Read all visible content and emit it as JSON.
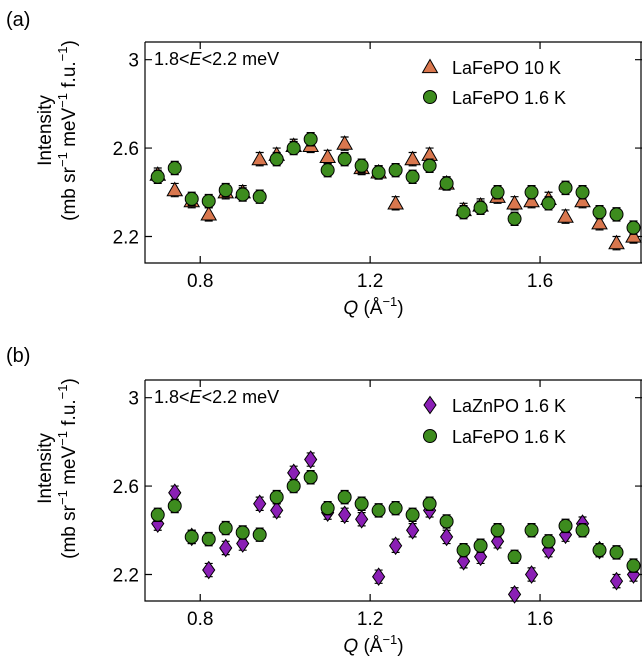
{
  "colors": {
    "triangle": "#d9774e",
    "circle": "#3d8c1e",
    "diamond": "#8a1fb5",
    "marker_edge": "#000000",
    "axis": "#000000"
  },
  "chart_data": [
    {
      "type": "scatter",
      "panel_label": "(a)",
      "annotation": {
        "pre": "1.8<",
        "var": "E",
        "post": "<2.2 meV"
      },
      "xlabel": {
        "var": "Q",
        "unit_pre": " (Å",
        "unit_sup": "−1",
        "unit_post": ")"
      },
      "ylabel": {
        "line1": "Intensity",
        "line2": "(mb sr−1 meV−1 f.u.−1)"
      },
      "ylabel_parts": {
        "line1": "Intensity",
        "l2a": "(mb sr",
        "l2b": "−1",
        "l2c": " meV",
        "l2d": "−1",
        "l2e": " f.u.",
        "l2f": "−1",
        "l2g": ")"
      },
      "xlim": [
        0.67,
        1.84
      ],
      "ylim": [
        2.08,
        3.08
      ],
      "xticks": [
        0.8,
        1.2,
        1.6
      ],
      "xtick_labels": [
        "0.8",
        "1.2",
        "1.6"
      ],
      "yticks": [
        2.2,
        2.6,
        3.0
      ],
      "ytick_labels": [
        "2.2",
        "2.6",
        "3"
      ],
      "legend_position": "top-right",
      "series": [
        {
          "name": "LaFePO 10 K",
          "marker": "triangle",
          "x": [
            0.7,
            0.74,
            0.78,
            0.82,
            0.86,
            0.9,
            0.94,
            0.98,
            1.02,
            1.06,
            1.1,
            1.14,
            1.18,
            1.22,
            1.26,
            1.3,
            1.34,
            1.38,
            1.42,
            1.46,
            1.5,
            1.54,
            1.58,
            1.62,
            1.66,
            1.7,
            1.74,
            1.78,
            1.82
          ],
          "y": [
            2.48,
            2.41,
            2.36,
            2.3,
            2.4,
            2.4,
            2.55,
            2.57,
            2.61,
            2.61,
            2.56,
            2.62,
            2.51,
            2.49,
            2.35,
            2.55,
            2.57,
            2.44,
            2.32,
            2.34,
            2.38,
            2.35,
            2.36,
            2.37,
            2.29,
            2.36,
            2.26,
            2.17,
            2.2
          ],
          "err": [
            0.03,
            0.03,
            0.03,
            0.03,
            0.03,
            0.03,
            0.03,
            0.03,
            0.03,
            0.03,
            0.03,
            0.03,
            0.03,
            0.03,
            0.03,
            0.03,
            0.03,
            0.03,
            0.03,
            0.03,
            0.03,
            0.03,
            0.03,
            0.03,
            0.03,
            0.03,
            0.03,
            0.03,
            0.03
          ]
        },
        {
          "name": "LaFePO 1.6 K",
          "marker": "circle",
          "x": [
            0.7,
            0.74,
            0.78,
            0.82,
            0.86,
            0.9,
            0.94,
            0.98,
            1.02,
            1.06,
            1.1,
            1.14,
            1.18,
            1.22,
            1.26,
            1.3,
            1.34,
            1.38,
            1.42,
            1.46,
            1.5,
            1.54,
            1.58,
            1.62,
            1.66,
            1.7,
            1.74,
            1.78,
            1.82
          ],
          "y": [
            2.47,
            2.51,
            2.37,
            2.36,
            2.41,
            2.39,
            2.38,
            2.55,
            2.6,
            2.64,
            2.5,
            2.55,
            2.52,
            2.49,
            2.5,
            2.47,
            2.52,
            2.44,
            2.31,
            2.33,
            2.4,
            2.28,
            2.4,
            2.35,
            2.42,
            2.4,
            2.31,
            2.3,
            2.24
          ],
          "err": [
            0.03,
            0.03,
            0.03,
            0.03,
            0.03,
            0.03,
            0.03,
            0.03,
            0.03,
            0.03,
            0.03,
            0.03,
            0.03,
            0.03,
            0.03,
            0.03,
            0.03,
            0.03,
            0.03,
            0.03,
            0.03,
            0.03,
            0.03,
            0.03,
            0.03,
            0.03,
            0.03,
            0.03,
            0.03
          ]
        }
      ]
    },
    {
      "type": "scatter",
      "panel_label": "(b)",
      "annotation": {
        "pre": "1.8<",
        "var": "E",
        "post": "<2.2 meV"
      },
      "xlabel": {
        "var": "Q",
        "unit_pre": " (Å",
        "unit_sup": "−1",
        "unit_post": ")"
      },
      "ylabel": {
        "line1": "Intensity",
        "line2": "(mb sr−1 meV−1 f.u.−1)"
      },
      "ylabel_parts": {
        "line1": "Intensity",
        "l2a": "(mb sr",
        "l2b": "−1",
        "l2c": " meV",
        "l2d": "−1",
        "l2e": " f.u.",
        "l2f": "−1",
        "l2g": ")"
      },
      "xlim": [
        0.67,
        1.84
      ],
      "ylim": [
        2.08,
        3.08
      ],
      "xticks": [
        0.8,
        1.2,
        1.6
      ],
      "xtick_labels": [
        "0.8",
        "1.2",
        "1.6"
      ],
      "yticks": [
        2.2,
        2.6,
        3.0
      ],
      "ytick_labels": [
        "2.2",
        "2.6",
        "3"
      ],
      "legend_position": "top-right",
      "series": [
        {
          "name": "LaZnPO 1.6 K",
          "marker": "diamond",
          "x": [
            0.7,
            0.74,
            0.78,
            0.82,
            0.86,
            0.9,
            0.94,
            0.98,
            1.02,
            1.06,
            1.1,
            1.14,
            1.18,
            1.22,
            1.26,
            1.3,
            1.34,
            1.38,
            1.42,
            1.46,
            1.5,
            1.54,
            1.58,
            1.62,
            1.66,
            1.7,
            1.74,
            1.78,
            1.82
          ],
          "y": [
            2.43,
            2.57,
            2.37,
            2.22,
            2.32,
            2.34,
            2.52,
            2.49,
            2.66,
            2.72,
            2.48,
            2.47,
            2.45,
            2.19,
            2.33,
            2.4,
            2.49,
            2.37,
            2.26,
            2.28,
            2.35,
            2.11,
            2.2,
            2.31,
            2.38,
            2.43,
            2.31,
            2.17,
            2.2
          ],
          "err": [
            0.03,
            0.03,
            0.03,
            0.03,
            0.03,
            0.03,
            0.03,
            0.03,
            0.03,
            0.03,
            0.03,
            0.03,
            0.03,
            0.03,
            0.03,
            0.03,
            0.03,
            0.03,
            0.03,
            0.03,
            0.03,
            0.03,
            0.03,
            0.03,
            0.03,
            0.03,
            0.03,
            0.03,
            0.03
          ]
        },
        {
          "name": "LaFePO 1.6 K",
          "marker": "circle",
          "x": [
            0.7,
            0.74,
            0.78,
            0.82,
            0.86,
            0.9,
            0.94,
            0.98,
            1.02,
            1.06,
            1.1,
            1.14,
            1.18,
            1.22,
            1.26,
            1.3,
            1.34,
            1.38,
            1.42,
            1.46,
            1.5,
            1.54,
            1.58,
            1.62,
            1.66,
            1.7,
            1.74,
            1.78,
            1.82
          ],
          "y": [
            2.47,
            2.51,
            2.37,
            2.36,
            2.41,
            2.39,
            2.38,
            2.55,
            2.6,
            2.64,
            2.5,
            2.55,
            2.52,
            2.49,
            2.5,
            2.47,
            2.52,
            2.44,
            2.31,
            2.33,
            2.4,
            2.28,
            2.4,
            2.35,
            2.42,
            2.4,
            2.31,
            2.3,
            2.24
          ],
          "err": [
            0.03,
            0.03,
            0.03,
            0.03,
            0.03,
            0.03,
            0.03,
            0.03,
            0.03,
            0.03,
            0.03,
            0.03,
            0.03,
            0.03,
            0.03,
            0.03,
            0.03,
            0.03,
            0.03,
            0.03,
            0.03,
            0.03,
            0.03,
            0.03,
            0.03,
            0.03,
            0.03,
            0.03,
            0.03
          ]
        }
      ]
    }
  ]
}
